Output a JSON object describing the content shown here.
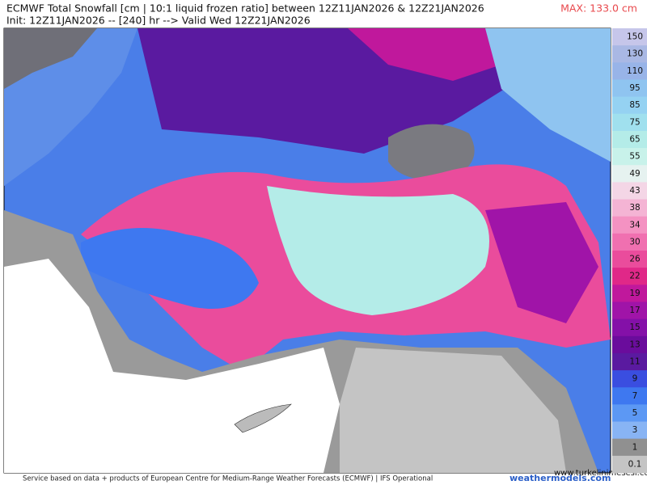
{
  "header": {
    "title": "ECMWF Total Snowfall [cm | 10:1 liquid frozen ratio] between 12Z11JAN2026 & 12Z21JAN2026",
    "subtitle": "Init: 12Z11JAN2026 -- [240] hr --> Valid Wed 12Z21JAN2026",
    "max": "MAX: 133.0 cm"
  },
  "legend": [
    {
      "label": "150",
      "color": "#c6c6ea"
    },
    {
      "label": "130",
      "color": "#a9b8e4"
    },
    {
      "label": "110",
      "color": "#98b4e8"
    },
    {
      "label": "95",
      "color": "#8fc4f0"
    },
    {
      "label": "85",
      "color": "#95d2f2"
    },
    {
      "label": "75",
      "color": "#a0e0ee"
    },
    {
      "label": "65",
      "color": "#b4ece8"
    },
    {
      "label": "55",
      "color": "#c8f2ea"
    },
    {
      "label": "49",
      "color": "#e6f2f0"
    },
    {
      "label": "43",
      "color": "#f4d6e6"
    },
    {
      "label": "38",
      "color": "#f4b4d4"
    },
    {
      "label": "34",
      "color": "#f492c2"
    },
    {
      "label": "30",
      "color": "#f070b0"
    },
    {
      "label": "26",
      "color": "#ea4c9c"
    },
    {
      "label": "22",
      "color": "#e02888"
    },
    {
      "label": "19",
      "color": "#c0189c"
    },
    {
      "label": "17",
      "color": "#a014a8"
    },
    {
      "label": "15",
      "color": "#8410a8"
    },
    {
      "label": "13",
      "color": "#6a0c9c"
    },
    {
      "label": "11",
      "color": "#5a1aa0"
    },
    {
      "label": "9",
      "color": "#3a4ee0"
    },
    {
      "label": "7",
      "color": "#3e78f0"
    },
    {
      "label": "5",
      "color": "#5c98f4"
    },
    {
      "label": "3",
      "color": "#88b4f4"
    },
    {
      "label": "1",
      "color": "#909090"
    },
    {
      "label": "0.1",
      "color": "#c4c4c4"
    }
  ],
  "footer": {
    "source": "Service based on data + products of European Centre for Medium-Range Weather Forecasts (ECMWF) | IFS Operational",
    "site": "weathermodels.com",
    "watermark": "www.turkelinimesesi.com"
  }
}
